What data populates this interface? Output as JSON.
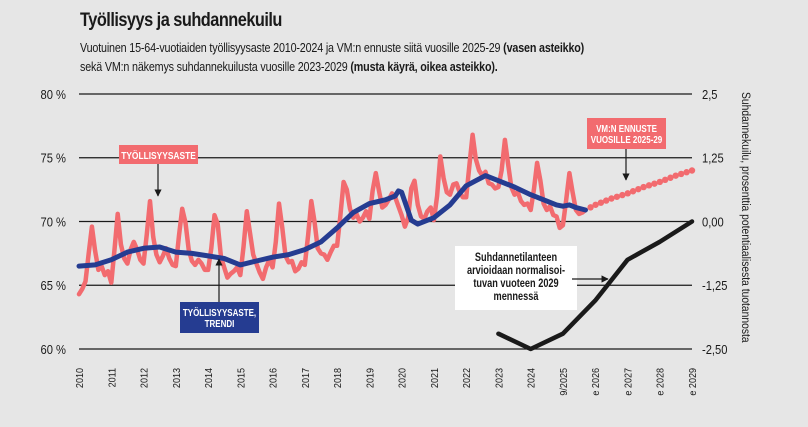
{
  "header": {
    "title": "Työllisyys ja suhdannekuilu",
    "subtitle_line1": "Vuotuinen 15-64-vuotiaiden työllisyysaste 2010-2024 ja VM:n ennuste siitä vuosille 2025-29 ",
    "subtitle_line1_bold": "(vasen asteikko)",
    "subtitle_line2": "sekä VM:n näkemys suhdannekuilusta vuosille 2023-2029 ",
    "subtitle_line2_bold": "(musta käyrä, oikea asteikko)."
  },
  "colors": {
    "background": "#e6e6e6",
    "actual": "#f26b6f",
    "trend": "#253c91",
    "gap": "#1a1a1a",
    "grid": "#1a1a1a"
  },
  "chart_data": {
    "type": "line",
    "title": "Työllisyys ja suhdannekuilu",
    "ylabel_left": "",
    "ylabel_right": "Suhdannekuilu, prosenttia potentiaalisesta tuotannosta",
    "ylim_left": [
      60,
      80
    ],
    "ylim_right": [
      -2.5,
      2.5
    ],
    "yticks_left": [
      "80 %",
      "75 %",
      "70 %",
      "65 %",
      "60 %"
    ],
    "yticks_left_values": [
      80,
      75,
      70,
      65,
      60
    ],
    "yticks_right": [
      "2,5",
      "1,25",
      "0,00",
      "-1,25",
      "-2,50"
    ],
    "yticks_right_values": [
      2.5,
      1.25,
      0,
      -1.25,
      -2.5
    ],
    "xlim": [
      2010,
      2029
    ],
    "xticks": [
      "2010",
      "2011",
      "2012",
      "2013",
      "2014",
      "2015",
      "2016",
      "2017",
      "2018",
      "2019",
      "2020",
      "2021",
      "2022",
      "2023",
      "2024",
      "9/2025",
      "e 2026",
      "e 2027",
      "e 2028",
      "e 2029"
    ],
    "xticks_values": [
      2010,
      2011,
      2012,
      2013,
      2014,
      2015,
      2016,
      2017,
      2018,
      2019,
      2020,
      2021,
      2022,
      2023,
      2024,
      2025,
      2026,
      2027,
      2028,
      2029
    ],
    "grid": true,
    "series": [
      {
        "name": "Työllisyysaste",
        "axis": "left",
        "style": "solid",
        "x": [
          2010.0,
          2010.1,
          2010.2,
          2010.3,
          2010.4,
          2010.5,
          2010.6,
          2010.7,
          2010.8,
          2010.9,
          2011.0,
          2011.1,
          2011.2,
          2011.3,
          2011.4,
          2011.5,
          2011.6,
          2011.7,
          2011.8,
          2011.9,
          2012.0,
          2012.1,
          2012.2,
          2012.3,
          2012.4,
          2012.5,
          2012.6,
          2012.7,
          2012.8,
          2012.9,
          2013.0,
          2013.1,
          2013.2,
          2013.3,
          2013.4,
          2013.5,
          2013.6,
          2013.7,
          2013.8,
          2013.9,
          2014.0,
          2014.1,
          2014.2,
          2014.3,
          2014.4,
          2014.5,
          2014.6,
          2014.7,
          2014.8,
          2014.9,
          2015.0,
          2015.1,
          2015.2,
          2015.3,
          2015.4,
          2015.5,
          2015.6,
          2015.7,
          2015.8,
          2015.9,
          2016.0,
          2016.1,
          2016.2,
          2016.3,
          2016.4,
          2016.5,
          2016.6,
          2016.7,
          2016.8,
          2016.9,
          2017.0,
          2017.1,
          2017.2,
          2017.3,
          2017.4,
          2017.5,
          2017.6,
          2017.7,
          2017.8,
          2017.9,
          2018.0,
          2018.1,
          2018.2,
          2018.3,
          2018.4,
          2018.5,
          2018.6,
          2018.7,
          2018.8,
          2018.9,
          2019.0,
          2019.1,
          2019.2,
          2019.3,
          2019.4,
          2019.5,
          2019.6,
          2019.7,
          2019.8,
          2019.9,
          2020.0,
          2020.1,
          2020.2,
          2020.3,
          2020.4,
          2020.5,
          2020.6,
          2020.7,
          2020.8,
          2020.9,
          2021.0,
          2021.1,
          2021.2,
          2021.3,
          2021.4,
          2021.5,
          2021.6,
          2021.7,
          2021.8,
          2021.9,
          2022.0,
          2022.1,
          2022.2,
          2022.3,
          2022.4,
          2022.5,
          2022.6,
          2022.7,
          2022.8,
          2022.9,
          2023.0,
          2023.1,
          2023.2,
          2023.3,
          2023.4,
          2023.5,
          2023.6,
          2023.7,
          2023.8,
          2023.9,
          2024.0,
          2024.1,
          2024.2,
          2024.3,
          2024.4,
          2024.5,
          2024.6,
          2024.7,
          2024.8,
          2024.9,
          2025.0,
          2025.1,
          2025.2,
          2025.3,
          2025.4,
          2025.5,
          2025.6,
          2025.7
        ],
        "values": [
          64.3,
          64.7,
          65.3,
          67.5,
          69.6,
          67.7,
          66.2,
          66.5,
          65.8,
          66.1,
          65.2,
          67.8,
          70.6,
          68.2,
          67.1,
          66.7,
          67.8,
          68.4,
          67.8,
          67.0,
          66.7,
          69.0,
          71.6,
          68.8,
          67.4,
          66.8,
          67.3,
          67.9,
          67.1,
          66.6,
          66.5,
          68.9,
          71.0,
          69.9,
          67.8,
          66.9,
          66.6,
          67.0,
          66.7,
          66.2,
          66.2,
          67.9,
          70.5,
          69.8,
          67.2,
          66.4,
          65.6,
          65.9,
          66.1,
          66.4,
          65.8,
          68.0,
          70.8,
          69.1,
          67.4,
          66.7,
          66.0,
          65.5,
          66.4,
          67.0,
          66.4,
          68.4,
          71.4,
          69.5,
          67.3,
          66.8,
          66.9,
          66.1,
          66.3,
          66.8,
          66.6,
          68.9,
          71.6,
          70.0,
          67.9,
          67.5,
          67.4,
          67.0,
          67.6,
          68.1,
          68.1,
          70.4,
          73.1,
          72.5,
          71.0,
          70.3,
          70.6,
          70.0,
          70.3,
          70.8,
          70.2,
          72.4,
          73.8,
          72.4,
          71.1,
          71.3,
          71.7,
          72.2,
          71.9,
          71.2,
          70.5,
          69.6,
          70.3,
          72.6,
          73.2,
          71.3,
          70.4,
          70.2,
          70.8,
          71.1,
          70.1,
          72.0,
          75.1,
          73.4,
          72.3,
          72.1,
          72.9,
          73.0,
          72.3,
          71.9,
          71.9,
          74.4,
          76.8,
          74.9,
          74.0,
          73.6,
          73.9,
          73.0,
          72.9,
          72.6,
          72.7,
          74.0,
          76.4,
          74.5,
          72.7,
          72.1,
          72.3,
          71.6,
          71.3,
          71.4,
          70.9,
          72.5,
          74.6,
          73.2,
          71.4,
          70.9,
          71.2,
          70.5,
          70.4,
          69.5,
          69.7,
          71.7,
          73.8,
          72.3,
          70.9,
          70.6,
          70.7,
          70.9
        ]
      },
      {
        "name": "Työllisyysaste, trendi",
        "axis": "left",
        "style": "solid",
        "x": [
          2010.0,
          2010.5,
          2011.0,
          2011.5,
          2012.0,
          2012.5,
          2013.0,
          2013.5,
          2014.0,
          2014.5,
          2015.0,
          2015.5,
          2016.0,
          2016.5,
          2017.0,
          2017.5,
          2018.0,
          2018.5,
          2019.0,
          2019.5,
          2019.8,
          2019.9,
          2020.0,
          2020.3,
          2020.5,
          2021.0,
          2021.5,
          2022.0,
          2022.3,
          2022.6,
          2023.0,
          2023.5,
          2024.0,
          2024.5,
          2024.8,
          2025.0,
          2025.2,
          2025.4,
          2025.7
        ],
        "values": [
          66.5,
          66.6,
          67.0,
          67.6,
          67.9,
          68.0,
          67.6,
          67.5,
          67.3,
          67.1,
          66.6,
          66.9,
          67.2,
          67.4,
          67.8,
          68.4,
          69.5,
          70.7,
          71.4,
          71.7,
          72.0,
          72.4,
          72.3,
          70.1,
          69.8,
          70.3,
          71.3,
          72.8,
          73.2,
          73.6,
          73.2,
          72.7,
          72.1,
          71.6,
          71.3,
          71.2,
          71.3,
          71.1,
          70.9
        ]
      },
      {
        "name": "VM:n ennuste vuosille 2025-29",
        "axis": "left",
        "style": "dotted",
        "x": [
          2025.7,
          2026.0,
          2026.5,
          2027.0,
          2027.5,
          2028.0,
          2028.5,
          2029.0
        ],
        "values": [
          70.9,
          71.3,
          71.8,
          72.2,
          72.7,
          73.1,
          73.6,
          74.0
        ]
      },
      {
        "name": "Suhdannekuilu",
        "axis": "right",
        "style": "solid",
        "x": [
          2023.0,
          2024.0,
          2025.0,
          2026.0,
          2027.0,
          2028.0,
          2029.0
        ],
        "values": [
          -2.2,
          -2.5,
          -2.2,
          -1.55,
          -0.75,
          -0.4,
          0.0
        ]
      }
    ],
    "annotations": [
      {
        "text": "TYÖLLISYYSASTE",
        "style": "salmon-box",
        "points_to": "Työllisyysaste 2012"
      },
      {
        "text_lines": [
          "TYÖLLISYYSASTE,",
          "TRENDI"
        ],
        "style": "navy-box",
        "points_to": "Trendi 2014"
      },
      {
        "text_lines": [
          "VM:N ENNUSTE",
          "VUOSILLE 2025-29"
        ],
        "style": "salmon-box",
        "points_to": "Ennuste 2027"
      },
      {
        "text_lines": [
          "Suhdannetilanteen",
          "arvioidaan normalisoi-",
          "tuvan vuoteen 2029",
          "mennessä"
        ],
        "style": "white-box",
        "points_to": "Suhdannekuilu"
      }
    ]
  }
}
